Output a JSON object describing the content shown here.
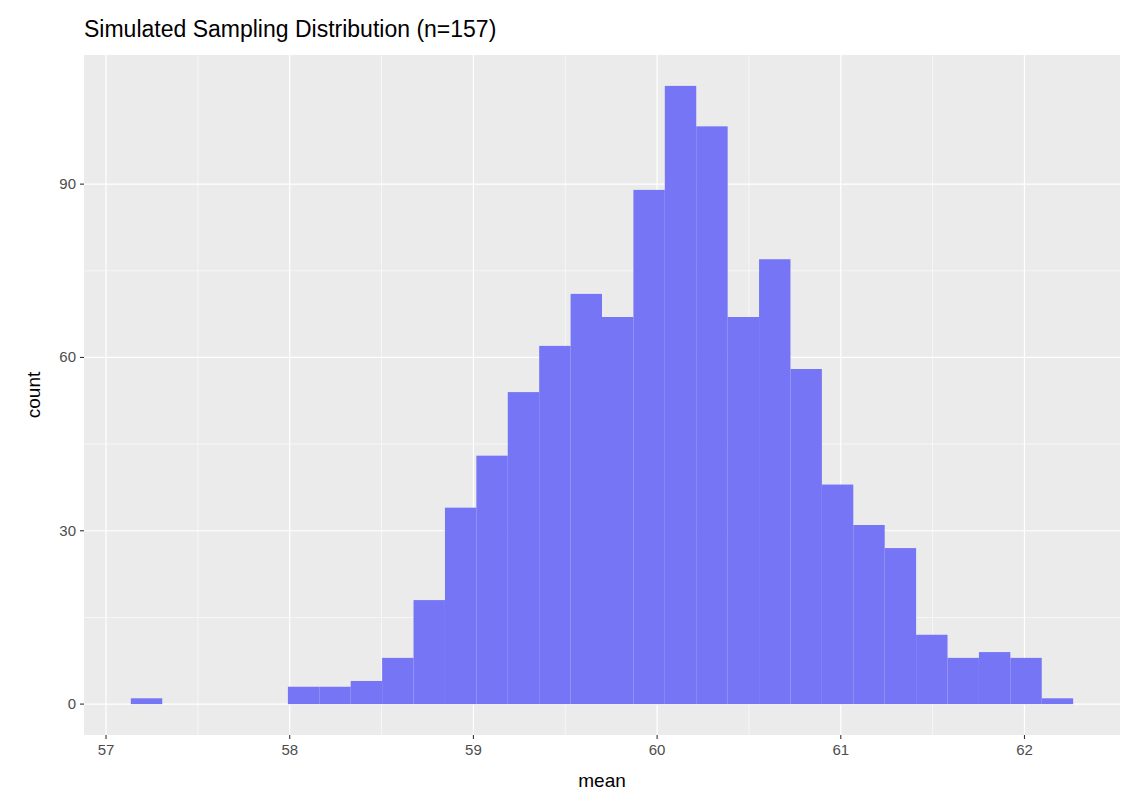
{
  "chart_data": {
    "type": "histogram",
    "title": "Simulated Sampling Distribution (n=157)",
    "x_label": "mean",
    "y_label": "count",
    "bins": [
      57.135,
      57.306,
      57.477,
      57.648,
      57.819,
      57.99,
      58.161,
      58.332,
      58.503,
      58.674,
      58.845,
      59.016,
      59.187,
      59.358,
      59.529,
      59.7,
      59.871,
      60.042,
      60.213,
      60.384,
      60.555,
      60.726,
      60.897,
      61.068,
      61.239,
      61.41,
      61.581,
      61.752,
      61.923,
      62.094,
      62.265
    ],
    "values": [
      1,
      0,
      0,
      0,
      0,
      3,
      3,
      4,
      8,
      18,
      34,
      43,
      54,
      62,
      71,
      67,
      89,
      107,
      100,
      67,
      77,
      58,
      38,
      31,
      27,
      12,
      8,
      9,
      8,
      1
    ],
    "color": "#7575f5",
    "xlim": [
      56.88,
      62.52
    ],
    "ylim": [
      -5.35,
      112.35
    ],
    "xticks": [
      57,
      58,
      59,
      60,
      61,
      62
    ],
    "yticks": [
      0,
      30,
      60,
      90
    ],
    "grid": true
  }
}
